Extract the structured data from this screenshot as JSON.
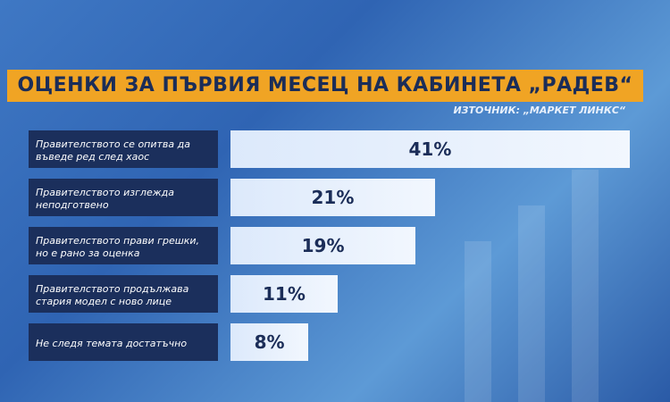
{
  "chart_data": {
    "type": "bar",
    "title": "ОЦЕНКИ ЗА ПЪРВИЯ МЕСЕЦ НА КАБИНЕТА „РАДЕВ“",
    "source": "ИЗТОЧНИК: „МАРКЕТ ЛИНКС“",
    "categories": [
      "Правителството се опитва да въведе ред след хаос",
      "Правителството изглежда неподготвено",
      "Правителството прави грешки, но е рано за оценка",
      "Правителството продължава стария модел с ново лице",
      "Не следя темата достатъчно"
    ],
    "values": [
      41,
      21,
      19,
      11,
      8
    ],
    "value_labels": [
      "41%",
      "21%",
      "19%",
      "11%",
      "8%"
    ],
    "color": "#dce9fb"
  }
}
